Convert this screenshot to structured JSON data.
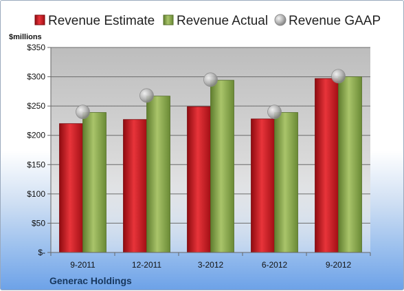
{
  "chart_data": {
    "type": "bar",
    "ylabel": "$millions",
    "footer": "Generac Holdings",
    "categories": [
      "9-2011",
      "12-2011",
      "3-2012",
      "6-2012",
      "9-2012"
    ],
    "series": [
      {
        "name": "Revenue Estimate",
        "kind": "bar",
        "color": "#c8141c",
        "values": [
          220,
          227,
          249,
          228,
          297
        ]
      },
      {
        "name": "Revenue Actual",
        "kind": "bar",
        "color": "#8aab4a",
        "values": [
          239,
          267,
          294,
          239,
          300
        ]
      },
      {
        "name": "Revenue GAAP",
        "kind": "marker",
        "color": "#a9a9a9",
        "values": [
          240,
          268,
          295,
          240,
          301
        ]
      }
    ],
    "yticks": [
      0,
      50,
      100,
      150,
      200,
      250,
      300,
      350
    ],
    "ytick_labels": [
      "$-",
      "$50",
      "$100",
      "$150",
      "$200",
      "$250",
      "$300",
      "$350"
    ],
    "ylim": [
      0,
      350
    ],
    "grid": true,
    "legend_position": "top"
  }
}
